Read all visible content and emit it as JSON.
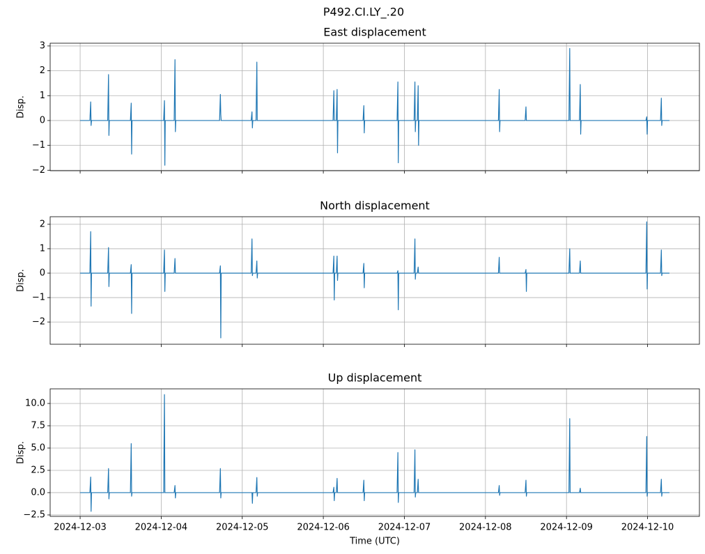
{
  "title": "P492.CI.LY_.20",
  "chart_data": [
    {
      "type": "line",
      "title": "East displacement",
      "ylabel": "Disp.",
      "color": "#1f77b4",
      "grid": true,
      "xlim": [
        -0.37,
        7.64
      ],
      "xticks": [
        0,
        1,
        2,
        3,
        4,
        5,
        6,
        7
      ],
      "ylim": [
        -2.02,
        3.11
      ],
      "yticks": [
        {
          "value": -2,
          "label": "−2"
        },
        {
          "value": -1,
          "label": "−1"
        },
        0,
        1,
        2,
        3
      ],
      "x": [
        0,
        0.12,
        0.13,
        0.135,
        0.14,
        0.34,
        0.35,
        0.355,
        0.36,
        0.62,
        0.63,
        0.635,
        0.64,
        1.03,
        1.04,
        1.045,
        1.05,
        1.16,
        1.17,
        1.175,
        1.18,
        1.72,
        1.73,
        1.735,
        1.74,
        2.11,
        2.12,
        2.125,
        2.13,
        2.17,
        2.18,
        2.185,
        2.19,
        3.12,
        3.13,
        3.135,
        3.14,
        3.16,
        3.17,
        3.175,
        3.18,
        3.49,
        3.5,
        3.505,
        3.51,
        3.91,
        3.92,
        3.925,
        3.93,
        4.12,
        4.13,
        4.135,
        4.14,
        4.16,
        4.17,
        4.175,
        4.18,
        5.16,
        5.17,
        5.175,
        5.18,
        5.49,
        5.5,
        5.505,
        5.51,
        6.03,
        6.04,
        6.045,
        6.05,
        6.16,
        6.17,
        6.175,
        6.18,
        6.98,
        6.99,
        6.995,
        7.0,
        7.16,
        7.17,
        7.175,
        7.18,
        7.27
      ],
      "values": [
        0,
        0,
        0.75,
        -0.2,
        0,
        0,
        1.85,
        -0.6,
        0,
        0,
        0.7,
        -1.35,
        0,
        0,
        0.8,
        -1.8,
        0,
        0,
        2.45,
        -0.45,
        0,
        0,
        1.05,
        0.25,
        0,
        0,
        0.35,
        -0.3,
        0,
        0,
        2.35,
        0,
        0,
        0,
        1.2,
        0,
        0,
        0,
        1.25,
        -1.3,
        0,
        0,
        0.6,
        -0.5,
        0,
        0,
        1.55,
        -1.7,
        0,
        0,
        1.55,
        -0.45,
        0,
        0,
        1.4,
        -1.0,
        0,
        0,
        1.25,
        -0.45,
        0,
        0,
        0.55,
        0,
        0,
        0,
        2.9,
        0,
        0,
        0,
        1.45,
        -0.55,
        0,
        0,
        0.15,
        -0.55,
        0,
        0,
        0.9,
        -0.2,
        0,
        0
      ]
    },
    {
      "type": "line",
      "title": "North displacement",
      "ylabel": "Disp.",
      "color": "#1f77b4",
      "grid": true,
      "xlim": [
        -0.37,
        7.64
      ],
      "xticks": [
        0,
        1,
        2,
        3,
        4,
        5,
        6,
        7
      ],
      "ylim": [
        -2.91,
        2.31
      ],
      "yticks": [
        {
          "value": -2,
          "label": "−2"
        },
        {
          "value": -1,
          "label": "−1"
        },
        0,
        1,
        2
      ],
      "x": [
        0,
        0.12,
        0.13,
        0.135,
        0.14,
        0.34,
        0.35,
        0.355,
        0.36,
        0.62,
        0.63,
        0.635,
        0.64,
        1.03,
        1.04,
        1.045,
        1.05,
        1.16,
        1.17,
        1.175,
        1.18,
        1.72,
        1.73,
        1.735,
        1.74,
        2.11,
        2.12,
        2.125,
        2.13,
        2.17,
        2.18,
        2.185,
        2.19,
        3.12,
        3.13,
        3.135,
        3.14,
        3.16,
        3.17,
        3.175,
        3.18,
        3.49,
        3.5,
        3.505,
        3.51,
        3.91,
        3.92,
        3.925,
        3.93,
        4.12,
        4.13,
        4.135,
        4.14,
        4.16,
        4.17,
        4.175,
        4.18,
        5.16,
        5.17,
        5.175,
        5.18,
        5.49,
        5.5,
        5.505,
        5.51,
        6.03,
        6.04,
        6.045,
        6.05,
        6.16,
        6.17,
        6.175,
        6.18,
        6.98,
        6.99,
        6.995,
        7.0,
        7.16,
        7.17,
        7.175,
        7.18,
        7.27
      ],
      "values": [
        0,
        0,
        1.7,
        -1.35,
        0,
        0,
        1.05,
        -0.55,
        0,
        0,
        0.35,
        -1.65,
        0,
        0,
        0.95,
        -0.75,
        0,
        0,
        0.6,
        0,
        0,
        0,
        0.3,
        -2.65,
        0,
        0,
        1.4,
        -0.1,
        0,
        0,
        0.5,
        -0.2,
        0,
        0,
        0.7,
        -1.1,
        0,
        0,
        0.7,
        -0.3,
        0,
        0,
        0.4,
        -0.6,
        0,
        0,
        0.1,
        -1.5,
        0,
        0,
        1.4,
        -0.25,
        0,
        0,
        0.25,
        0,
        0,
        0,
        0.65,
        0,
        0,
        0,
        0.15,
        -0.75,
        0,
        0,
        1.0,
        0,
        0,
        0,
        0.5,
        0,
        0,
        0,
        2.1,
        -0.65,
        0,
        0,
        0.95,
        -0.1,
        0,
        0
      ]
    },
    {
      "type": "line",
      "title": "Up displacement",
      "ylabel": "Disp.",
      "xlabel": "Time (UTC)",
      "color": "#1f77b4",
      "grid": true,
      "xlim": [
        -0.37,
        7.64
      ],
      "xticks": [
        {
          "value": 0,
          "label": "2024-12-03"
        },
        {
          "value": 1,
          "label": "2024-12-04"
        },
        {
          "value": 2,
          "label": "2024-12-05"
        },
        {
          "value": 3,
          "label": "2024-12-06"
        },
        {
          "value": 4,
          "label": "2024-12-07"
        },
        {
          "value": 5,
          "label": "2024-12-08"
        },
        {
          "value": 6,
          "label": "2024-12-09"
        },
        {
          "value": 7,
          "label": "2024-12-10"
        }
      ],
      "ylim": [
        -2.66,
        11.64
      ],
      "yticks": [
        {
          "value": -2.5,
          "label": "−2.5"
        },
        {
          "value": 0,
          "label": "0.0"
        },
        2.5,
        {
          "value": 5,
          "label": "5.0"
        },
        7.5,
        {
          "value": 10,
          "label": "10.0"
        }
      ],
      "x": [
        0,
        0.12,
        0.13,
        0.135,
        0.14,
        0.34,
        0.35,
        0.355,
        0.36,
        0.62,
        0.63,
        0.635,
        0.64,
        1.03,
        1.04,
        1.045,
        1.05,
        1.16,
        1.17,
        1.175,
        1.18,
        1.72,
        1.73,
        1.735,
        1.74,
        2.11,
        2.12,
        2.125,
        2.13,
        2.17,
        2.18,
        2.185,
        2.19,
        3.12,
        3.13,
        3.135,
        3.14,
        3.16,
        3.17,
        3.175,
        3.18,
        3.49,
        3.5,
        3.505,
        3.51,
        3.91,
        3.92,
        3.925,
        3.93,
        4.12,
        4.13,
        4.135,
        4.14,
        4.16,
        4.17,
        4.175,
        4.18,
        5.16,
        5.17,
        5.175,
        5.18,
        5.49,
        5.5,
        5.505,
        5.51,
        6.03,
        6.04,
        6.045,
        6.05,
        6.16,
        6.17,
        6.175,
        6.18,
        6.98,
        6.99,
        6.995,
        7.0,
        7.16,
        7.17,
        7.175,
        7.18,
        7.27
      ],
      "values": [
        0,
        0,
        1.75,
        -2.1,
        0,
        0,
        2.7,
        -0.7,
        0,
        0,
        5.5,
        -0.4,
        0,
        0,
        11.0,
        0,
        0,
        0,
        0.8,
        -0.6,
        0,
        0,
        2.7,
        -0.6,
        0,
        0,
        0,
        -1.2,
        0,
        0,
        1.7,
        -0.4,
        0,
        0,
        0.6,
        -0.9,
        0,
        0,
        1.6,
        0,
        0,
        0,
        1.4,
        -0.9,
        0,
        0,
        4.5,
        -1.1,
        0,
        0,
        4.8,
        -0.5,
        0,
        0,
        1.5,
        0,
        0,
        0,
        0.8,
        -0.3,
        0,
        0,
        1.4,
        -0.4,
        0,
        0,
        8.3,
        0,
        0,
        0,
        0.5,
        0,
        0,
        0,
        6.3,
        -0.4,
        0,
        0,
        1.5,
        -0.4,
        0,
        0
      ]
    }
  ]
}
